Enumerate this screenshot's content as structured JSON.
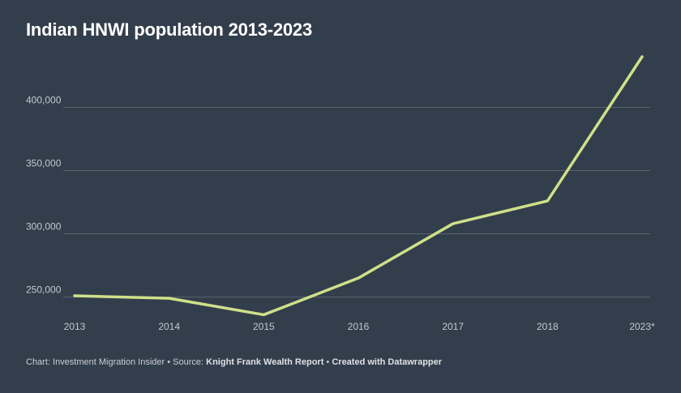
{
  "chart_data": {
    "type": "line",
    "title": "Indian HNWI population 2013-2023",
    "categories": [
      "2013",
      "2014",
      "2015",
      "2016",
      "2017",
      "2018",
      "2023*"
    ],
    "series": [
      {
        "values": [
          251000,
          249000,
          236000,
          265000,
          308000,
          326000,
          440000
        ]
      }
    ],
    "yticks": [
      250000,
      300000,
      350000,
      400000
    ],
    "ytick_labels": [
      "250,000",
      "300,000",
      "350,000",
      "400,000"
    ],
    "ylim": [
      235000,
      440000
    ],
    "grid": true,
    "xlabel": "",
    "ylabel": "",
    "line_color": "#cfe08a",
    "grid_color": "#59636f"
  },
  "footer": {
    "prefix": "Chart: Investment Migration Insider • Source: ",
    "source": "Knight Frank Wealth Report",
    "separator": " • ",
    "credit": "Created with Datawrapper"
  }
}
